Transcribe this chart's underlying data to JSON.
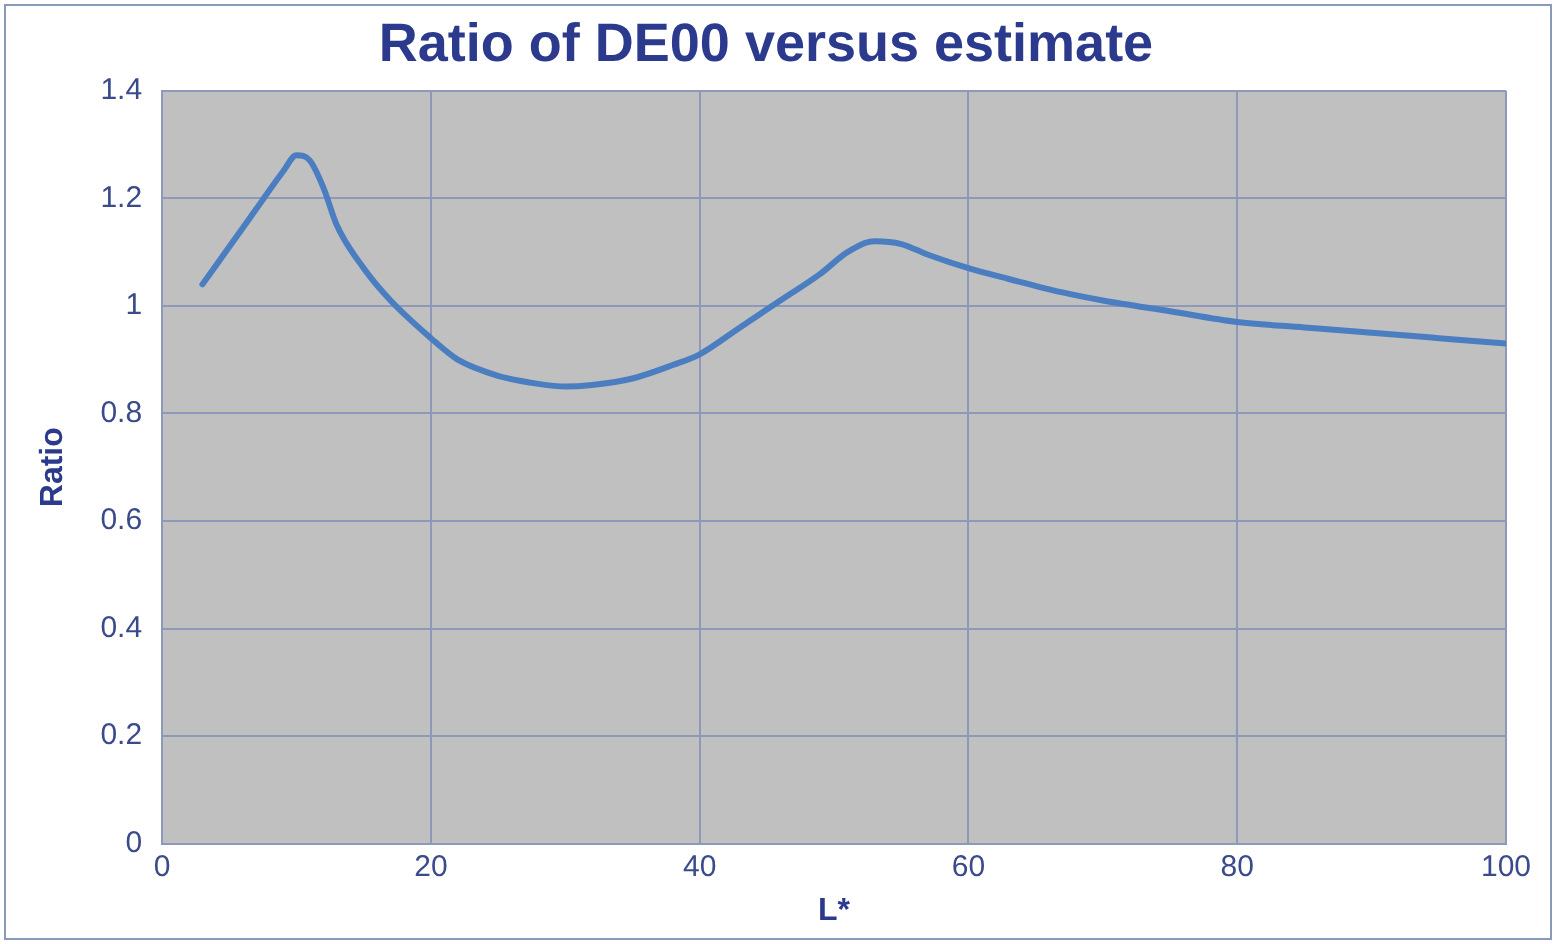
{
  "chart_data": {
    "type": "line",
    "title": "Ratio of DE00 versus estimate",
    "xlabel": "L*",
    "ylabel": "Ratio",
    "xlim": [
      0,
      100
    ],
    "xticks": [
      0,
      20,
      40,
      60,
      80,
      100
    ],
    "ylim": [
      0,
      1.4
    ],
    "yticks": [
      0,
      0.2,
      0.4,
      0.6,
      0.8,
      1,
      1.2,
      1.4
    ],
    "grid": true,
    "legend": false,
    "marker": "none",
    "line_style": "solid",
    "series": [
      {
        "color": "#4a7ec0",
        "x": [
          3,
          5,
          7,
          9,
          10,
          11,
          12,
          13,
          15,
          17,
          20,
          22,
          25,
          28,
          30,
          32,
          35,
          38,
          40,
          43,
          46,
          49,
          51,
          53,
          55,
          57,
          60,
          63,
          67,
          70,
          75,
          80,
          85,
          90,
          95,
          100
        ],
        "values": [
          1.04,
          1.11,
          1.18,
          1.25,
          1.28,
          1.27,
          1.22,
          1.15,
          1.07,
          1.01,
          0.94,
          0.9,
          0.87,
          0.855,
          0.85,
          0.853,
          0.865,
          0.89,
          0.91,
          0.96,
          1.01,
          1.06,
          1.1,
          1.12,
          1.115,
          1.095,
          1.07,
          1.05,
          1.025,
          1.01,
          0.99,
          0.97,
          0.96,
          0.95,
          0.94,
          0.93
        ]
      }
    ]
  }
}
